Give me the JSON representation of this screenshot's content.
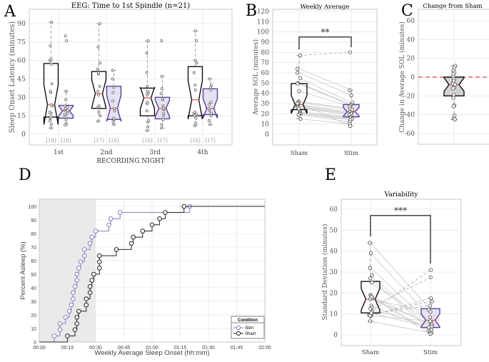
{
  "colors": {
    "stim_stroke": "#5b3f99",
    "stim_fill": "#e4e2f2",
    "stim_line": "#8c7bbd",
    "sham_stroke": "#111111",
    "median": "#e8413a",
    "grid": "#e6e6e6",
    "shade": "#e9ebea",
    "diff_fill": "#d2d2d2",
    "zero_line": "#e8413a"
  },
  "chart_data": [
    {
      "panel": "A",
      "type": "box",
      "title": "EEG: Time to 1st Spindle (n=21)",
      "ylabel": "Sleep Onset Latency (minutes)",
      "xlabel": "RECORDING NIGHT",
      "yticks": [
        0,
        15,
        30,
        45,
        60,
        75,
        90
      ],
      "ylim": [
        -9,
        102
      ],
      "grid": true,
      "groups": [
        {
          "category": "1st",
          "boxes": [
            {
              "condition": "sham",
              "count": "[18]",
              "min": 5,
              "q1": 14,
              "median": 24,
              "q3": 57.5,
              "max": 91,
              "outliers": [],
              "points": [
                5,
                8,
                11,
                13,
                14,
                17,
                18,
                23,
                24,
                34,
                35,
                41,
                57,
                60,
                61,
                72,
                91
              ]
            },
            {
              "condition": "stim",
              "count": "[18]",
              "min": 7.5,
              "q1": 13,
              "median": 19,
              "q3": 23.5,
              "max": 35,
              "outliers": [
                76,
                80
              ],
              "points": [
                7.5,
                9,
                12,
                14,
                16,
                17,
                19,
                20,
                21,
                22,
                23,
                28,
                35,
                76,
                80
              ]
            }
          ]
        },
        {
          "category": "2nd",
          "boxes": [
            {
              "condition": "sham",
              "count": "[17]",
              "min": 10.5,
              "q1": 21,
              "median": 33,
              "q3": 51,
              "max": 90,
              "outliers": [],
              "points": [
                10.5,
                15,
                18,
                22,
                23,
                32,
                35,
                39,
                49,
                50,
                53,
                58,
                71,
                90
              ]
            },
            {
              "condition": "stim",
              "count": "[16]",
              "min": 8,
              "q1": 12,
              "median": 21,
              "q3": 39,
              "max": 52,
              "outliers": [],
              "points": [
                8,
                10,
                12,
                13,
                19,
                21,
                27,
                34,
                38,
                45,
                52
              ]
            }
          ]
        },
        {
          "category": "3rd",
          "boxes": [
            {
              "condition": "sham",
              "count": "[16]",
              "min": 3,
              "q1": 15,
              "median": 29.5,
              "q3": 37.5,
              "max": 76,
              "outliers": [],
              "points": [
                3,
                6,
                10,
                11,
                19,
                25,
                26,
                32,
                34,
                35,
                39,
                50,
                66,
                76
              ]
            },
            {
              "condition": "stim",
              "count": "[17]",
              "min": 5,
              "q1": 12.5,
              "median": 21,
              "q3": 30,
              "max": 47,
              "outliers": [
                76
              ],
              "points": [
                5,
                8,
                12,
                15,
                17,
                20,
                21,
                23,
                28,
                29,
                33,
                37,
                47,
                76
              ]
            }
          ]
        },
        {
          "category": "4th",
          "boxes": [
            {
              "condition": "sham",
              "count": "[16]",
              "min": 7,
              "q1": 15,
              "median": 28,
              "q3": 55,
              "max": 84,
              "outliers": [],
              "points": [
                7,
                9,
                13,
                15,
                16,
                17,
                18,
                36,
                40,
                50,
                58,
                60,
                76,
                84
              ]
            },
            {
              "condition": "stim",
              "count": "[17]",
              "min": 8,
              "q1": 16,
              "median": 21,
              "q3": 37,
              "max": 45,
              "outliers": [],
              "points": [
                8,
                11,
                15,
                17,
                19,
                21,
                24,
                26,
                36,
                38,
                40,
                45
              ]
            }
          ]
        }
      ]
    },
    {
      "panel": "B",
      "type": "box",
      "title": "Weekly Average",
      "ylabel": "Average SOL (minutes)",
      "categories": [
        "Sham",
        "Stim"
      ],
      "yticks": [
        0,
        10,
        20,
        30,
        40,
        50,
        60,
        70,
        80,
        90,
        100,
        110,
        120
      ],
      "ylim": [
        -11,
        122
      ],
      "grid": true,
      "significance": "**",
      "boxes": [
        {
          "min": 15,
          "q1": 24,
          "median": 29,
          "q3": 49.5,
          "max": 77
        },
        {
          "min": 8,
          "q1": 17,
          "median": 22,
          "q3": 29,
          "max": 43,
          "outliers": [
            80
          ]
        }
      ],
      "pairs": [
        [
          77,
          80
        ],
        [
          64,
          43
        ],
        [
          60,
          38
        ],
        [
          55,
          31
        ],
        [
          50,
          29
        ],
        [
          49.5,
          28
        ],
        [
          42,
          27
        ],
        [
          32,
          25
        ],
        [
          31,
          24
        ],
        [
          29,
          22
        ],
        [
          28,
          21
        ],
        [
          27,
          20
        ],
        [
          26,
          20
        ],
        [
          25,
          19
        ],
        [
          22,
          17
        ],
        [
          21,
          16
        ],
        [
          20,
          15
        ],
        [
          20,
          14
        ],
        [
          19,
          12
        ],
        [
          15,
          10
        ],
        [
          30,
          8
        ]
      ]
    },
    {
      "panel": "C",
      "type": "box",
      "title": "Change from Sham",
      "ylabel": "Change in Average SOL (minutes)",
      "yticks": [
        -60,
        -40,
        -20,
        0,
        20,
        40,
        60
      ],
      "ylim": [
        -71,
        72
      ],
      "grid": true,
      "reference_line": 0,
      "box": {
        "min": -45,
        "q1": -20,
        "median": -8,
        "q3": 0,
        "max": 12
      },
      "points": [
        12,
        10,
        7,
        5,
        3,
        0,
        -2,
        -4,
        -7,
        -8,
        -11,
        -12,
        -19,
        -22,
        -30,
        -31,
        -41,
        -44,
        -45
      ]
    },
    {
      "panel": "D",
      "type": "line",
      "xlabel": "Weekly Average Sleep Onset (hh:mm)",
      "ylabel": "Percent Asleep (%)",
      "xticks": [
        "00:00",
        "00:15",
        "00:30",
        "00:45",
        "01:00",
        "01:15",
        "01:30",
        "01:45",
        "02:00"
      ],
      "yticks": [
        0,
        10,
        20,
        30,
        40,
        50,
        60,
        70,
        80,
        90,
        100
      ],
      "xlim": [
        "00:00",
        "02:00"
      ],
      "ylim": [
        0,
        105
      ],
      "grid": true,
      "shaded_region": [
        "00:00",
        "00:30"
      ],
      "legend": {
        "title": "Condition",
        "position": "bottom-right"
      },
      "series": [
        {
          "name": "Stim",
          "points": [
            [
              "00:08",
              4.5
            ],
            [
              "00:11",
              9.1
            ],
            [
              "00:11",
              13.6
            ],
            [
              "00:14",
              18.2
            ],
            [
              "00:16",
              22.7
            ],
            [
              "00:17",
              27.3
            ],
            [
              "00:18",
              31.8
            ],
            [
              "00:18",
              36.4
            ],
            [
              "00:19",
              40.9
            ],
            [
              "00:20",
              45.5
            ],
            [
              "00:20",
              50
            ],
            [
              "00:21",
              54.5
            ],
            [
              "00:22",
              59.1
            ],
            [
              "00:24",
              63.6
            ],
            [
              "00:24",
              68.2
            ],
            [
              "00:27",
              72.7
            ],
            [
              "00:28",
              77.3
            ],
            [
              "00:30",
              81.8
            ],
            [
              "00:37",
              86.4
            ],
            [
              "00:38",
              90.9
            ],
            [
              "00:43",
              95.5
            ],
            [
              "01:20",
              100
            ]
          ]
        },
        {
          "name": "Sham",
          "points": [
            [
              "00:15",
              4.5
            ],
            [
              "00:19",
              9.1
            ],
            [
              "00:20",
              13.6
            ],
            [
              "00:20",
              18.2
            ],
            [
              "00:21",
              22.7
            ],
            [
              "00:25",
              27.3
            ],
            [
              "00:25",
              31.8
            ],
            [
              "00:27",
              36.4
            ],
            [
              "00:27",
              40.9
            ],
            [
              "00:28",
              45.5
            ],
            [
              "00:29",
              50
            ],
            [
              "00:32",
              54.5
            ],
            [
              "00:32",
              59.1
            ],
            [
              "00:32",
              63.6
            ],
            [
              "00:41",
              68.2
            ],
            [
              "00:49",
              72.7
            ],
            [
              "00:50",
              77.3
            ],
            [
              "00:55",
              81.8
            ],
            [
              "01:00",
              86.4
            ],
            [
              "01:04",
              90.9
            ],
            [
              "01:07",
              95.5
            ],
            [
              "01:17",
              100
            ]
          ]
        }
      ]
    },
    {
      "panel": "E",
      "type": "box",
      "title": "Variability",
      "ylabel": "Standard Deviation (minutes)",
      "categories": [
        "Sham",
        "Stim"
      ],
      "yticks": [
        0,
        10,
        20,
        30,
        40,
        50,
        60
      ],
      "ylim": [
        -5,
        65
      ],
      "grid": true,
      "significance": "***",
      "boxes": [
        {
          "min": 6.5,
          "q1": 10.5,
          "median": 17,
          "q3": 25.5,
          "max": 44
        },
        {
          "min": 0.5,
          "q1": 3.5,
          "median": 7,
          "q3": 12.5,
          "max": 17.5,
          "outliers": [
            27.5,
            31
          ]
        }
      ],
      "pairs": [
        [
          44,
          12
        ],
        [
          39,
          8.5
        ],
        [
          32,
          5.5
        ],
        [
          28.5,
          3
        ],
        [
          27,
          2
        ],
        [
          25,
          6
        ],
        [
          19,
          4.5
        ],
        [
          18.5,
          1.5
        ],
        [
          17.5,
          5
        ],
        [
          17,
          11
        ],
        [
          14,
          2.5
        ],
        [
          13,
          27.5
        ],
        [
          11,
          31
        ],
        [
          10,
          14
        ],
        [
          9.5,
          16
        ],
        [
          9,
          17.5
        ],
        [
          6.5,
          1
        ],
        [
          18,
          0.5
        ],
        [
          12.5,
          4
        ],
        [
          10.5,
          3.5
        ],
        [
          9.2,
          6.5
        ]
      ]
    }
  ]
}
